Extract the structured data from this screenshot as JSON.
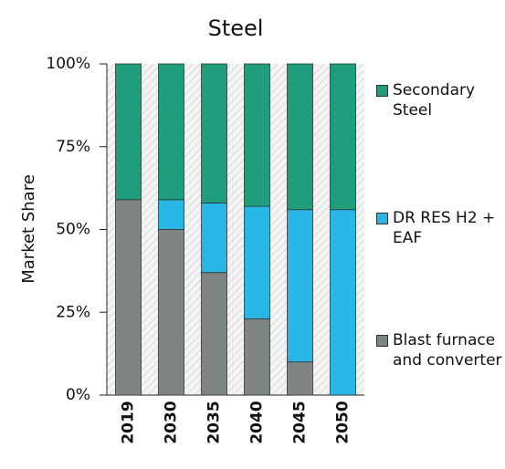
{
  "chart_data": {
    "type": "stacked_bar",
    "title": "Steel",
    "y_label": "Market Share",
    "categories": [
      "2019",
      "2030",
      "2035",
      "2040",
      "2045",
      "2050"
    ],
    "series": [
      {
        "name": "Blast furnace and converter",
        "color": "#7f8583",
        "values": [
          59,
          50,
          37,
          23,
          10,
          0
        ]
      },
      {
        "name": "DR RES H2 + EAF",
        "color": "#29b6e4",
        "values": [
          0,
          9,
          21,
          34,
          46,
          56
        ]
      },
      {
        "name": "Secondary Steel",
        "color": "#1e9e7b",
        "values": [
          41,
          41,
          42,
          43,
          44,
          44
        ]
      }
    ],
    "ylim": [
      0,
      100
    ],
    "yticks": [
      {
        "value": 0,
        "label": "0%"
      },
      {
        "value": 25,
        "label": "25%"
      },
      {
        "value": 50,
        "label": "50%"
      },
      {
        "value": 75,
        "label": "75%"
      },
      {
        "value": 100,
        "label": "100%"
      }
    ],
    "legend": "right"
  }
}
